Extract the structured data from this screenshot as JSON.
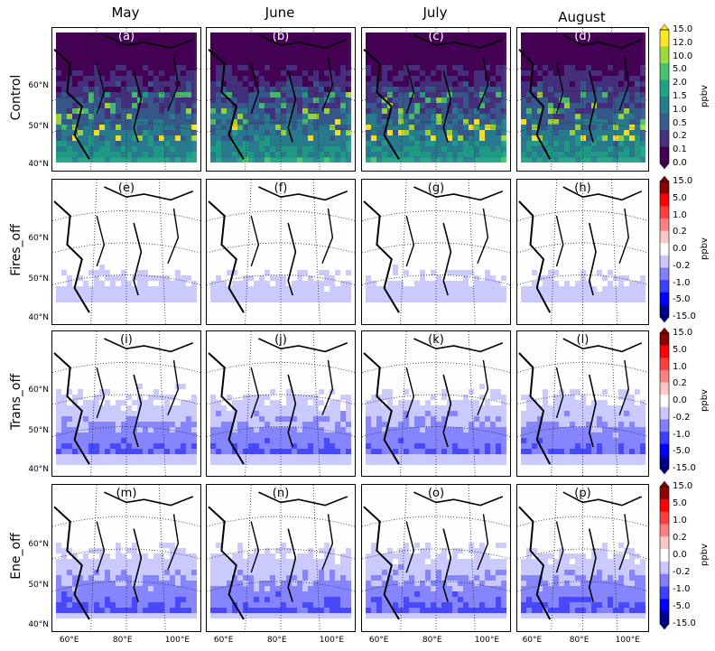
{
  "chart_data": {
    "type": "heatmap",
    "columns": [
      "May",
      "June",
      "July",
      "August"
    ],
    "rows": [
      "Control",
      "Fires_off",
      "Trans_off",
      "Ene_off"
    ],
    "panel_labels": [
      [
        "(a)",
        "(b)",
        "(c)",
        "(d)"
      ],
      [
        "(e)",
        "(f)",
        "(g)",
        "(h)"
      ],
      [
        "(i)",
        "(j)",
        "(k)",
        "(l)"
      ],
      [
        "(m)",
        "(n)",
        "(o)",
        "(p)"
      ]
    ],
    "lat_ticks": [
      "60°N",
      "50°N",
      "40°N"
    ],
    "lon_ticks": [
      "60°E",
      "80°E",
      "100°E"
    ],
    "colorbars": [
      {
        "unit": "ppbv",
        "scheme": "viridis",
        "ticks": [
          "15.0",
          "12.0",
          "10.0",
          "5.0",
          "2.0",
          "1.5",
          "1.0",
          "0.5",
          "0.2",
          "0.1",
          "0.0"
        ]
      },
      {
        "unit": "ppbv",
        "scheme": "diverging",
        "ticks": [
          "15.0",
          "5.0",
          "1.0",
          "0.2",
          "0.0",
          "-0.2",
          "-1.0",
          "-5.0",
          "-15.0"
        ]
      },
      {
        "unit": "ppbv",
        "scheme": "diverging",
        "ticks": [
          "15.0",
          "5.0",
          "1.0",
          "0.2",
          "0.0",
          "-0.2",
          "-1.0",
          "-5.0",
          "-15.0"
        ]
      },
      {
        "unit": "ppbv",
        "scheme": "diverging",
        "ticks": [
          "15.0",
          "5.0",
          "1.0",
          "0.2",
          "0.0",
          "-0.2",
          "-1.0",
          "-5.0",
          "-15.0"
        ]
      }
    ],
    "colors": {
      "viridis": [
        "#440154",
        "#46327e",
        "#365c8d",
        "#277f8e",
        "#1fa187",
        "#4ac16d",
        "#a0da39",
        "#fde725"
      ],
      "diverging": [
        "#00008b",
        "#0000ff",
        "#3f3fff",
        "#8080ff",
        "#c8c8ff",
        "#ffffff",
        "#ffc8c8",
        "#ff8080",
        "#ff3f3f",
        "#ff0000",
        "#8b0000"
      ]
    }
  }
}
